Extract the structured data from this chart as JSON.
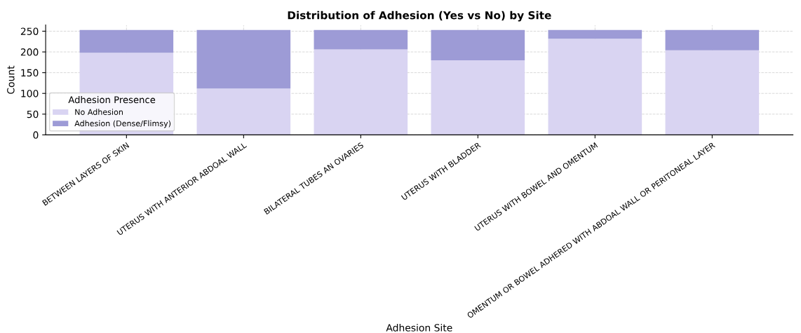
{
  "chart_data": {
    "type": "bar",
    "stacked": true,
    "title": "Distribution of Adhesion (Yes vs No) by Site",
    "xlabel": "Adhesion Site",
    "ylabel": "Count",
    "legend_title": "Adhesion Presence",
    "categories": [
      "BETWEEN LAYERS OF SKIN",
      "UTERUS WITH ANTERIOR ABDOAL WALL",
      "BILATERAL TUBES AN OVARIES",
      "UTERUS WITH BLADDER",
      "UTERUS WITH BOWEL AND OMENTUM",
      "OMENTUM OR BOWEL ADHERED WITH ABDOAL WALL OR PERITONEAL LAYER"
    ],
    "series": [
      {
        "name": "No Adhesion",
        "color": "#d9d4f2",
        "values": [
          198,
          112,
          206,
          180,
          232,
          204
        ]
      },
      {
        "name": "Adhesion (Dense/Flimsy)",
        "color": "#9d9bd6",
        "values": [
          55,
          141,
          47,
          73,
          21,
          49
        ]
      }
    ],
    "ylim": [
      0,
      265
    ],
    "yticks": [
      0,
      50,
      100,
      150,
      200,
      250
    ],
    "grid": true,
    "legend": "bottom left"
  }
}
